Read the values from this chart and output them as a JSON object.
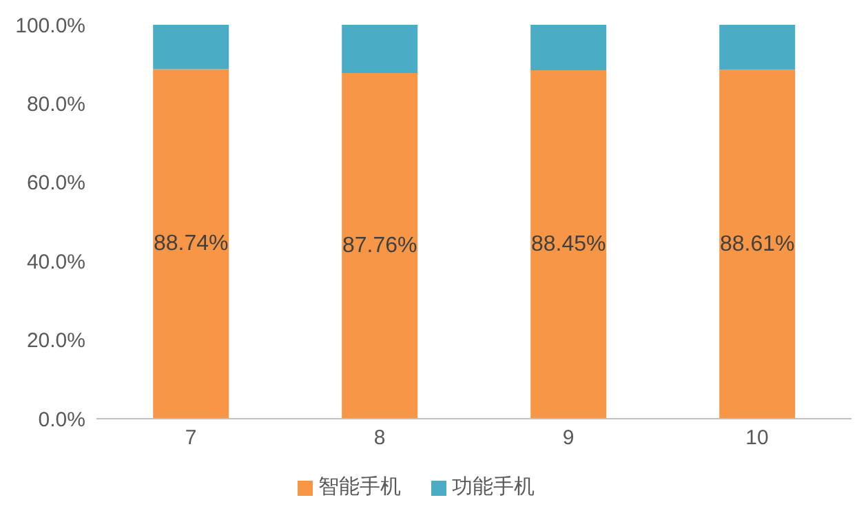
{
  "chart_data": {
    "type": "bar",
    "stacked": true,
    "categories": [
      "7",
      "8",
      "9",
      "10"
    ],
    "series": [
      {
        "name": "智能手机",
        "color": "#f79646",
        "values": [
          88.74,
          87.76,
          88.45,
          88.61
        ],
        "value_labels": [
          "88.74%",
          "87.76%",
          "88.45%",
          "88.61%"
        ]
      },
      {
        "name": "功能手机",
        "color": "#4bacc6",
        "values": [
          11.26,
          12.24,
          11.55,
          11.39
        ]
      }
    ],
    "ylim": [
      0,
      100
    ],
    "yticks": [
      {
        "value": 0,
        "label": "0.0%"
      },
      {
        "value": 20,
        "label": "20.0%"
      },
      {
        "value": 40,
        "label": "40.0%"
      },
      {
        "value": 60,
        "label": "60.0%"
      },
      {
        "value": 80,
        "label": "80.0%"
      },
      {
        "value": 100,
        "label": "100.0%"
      }
    ],
    "legend": "bottom"
  }
}
